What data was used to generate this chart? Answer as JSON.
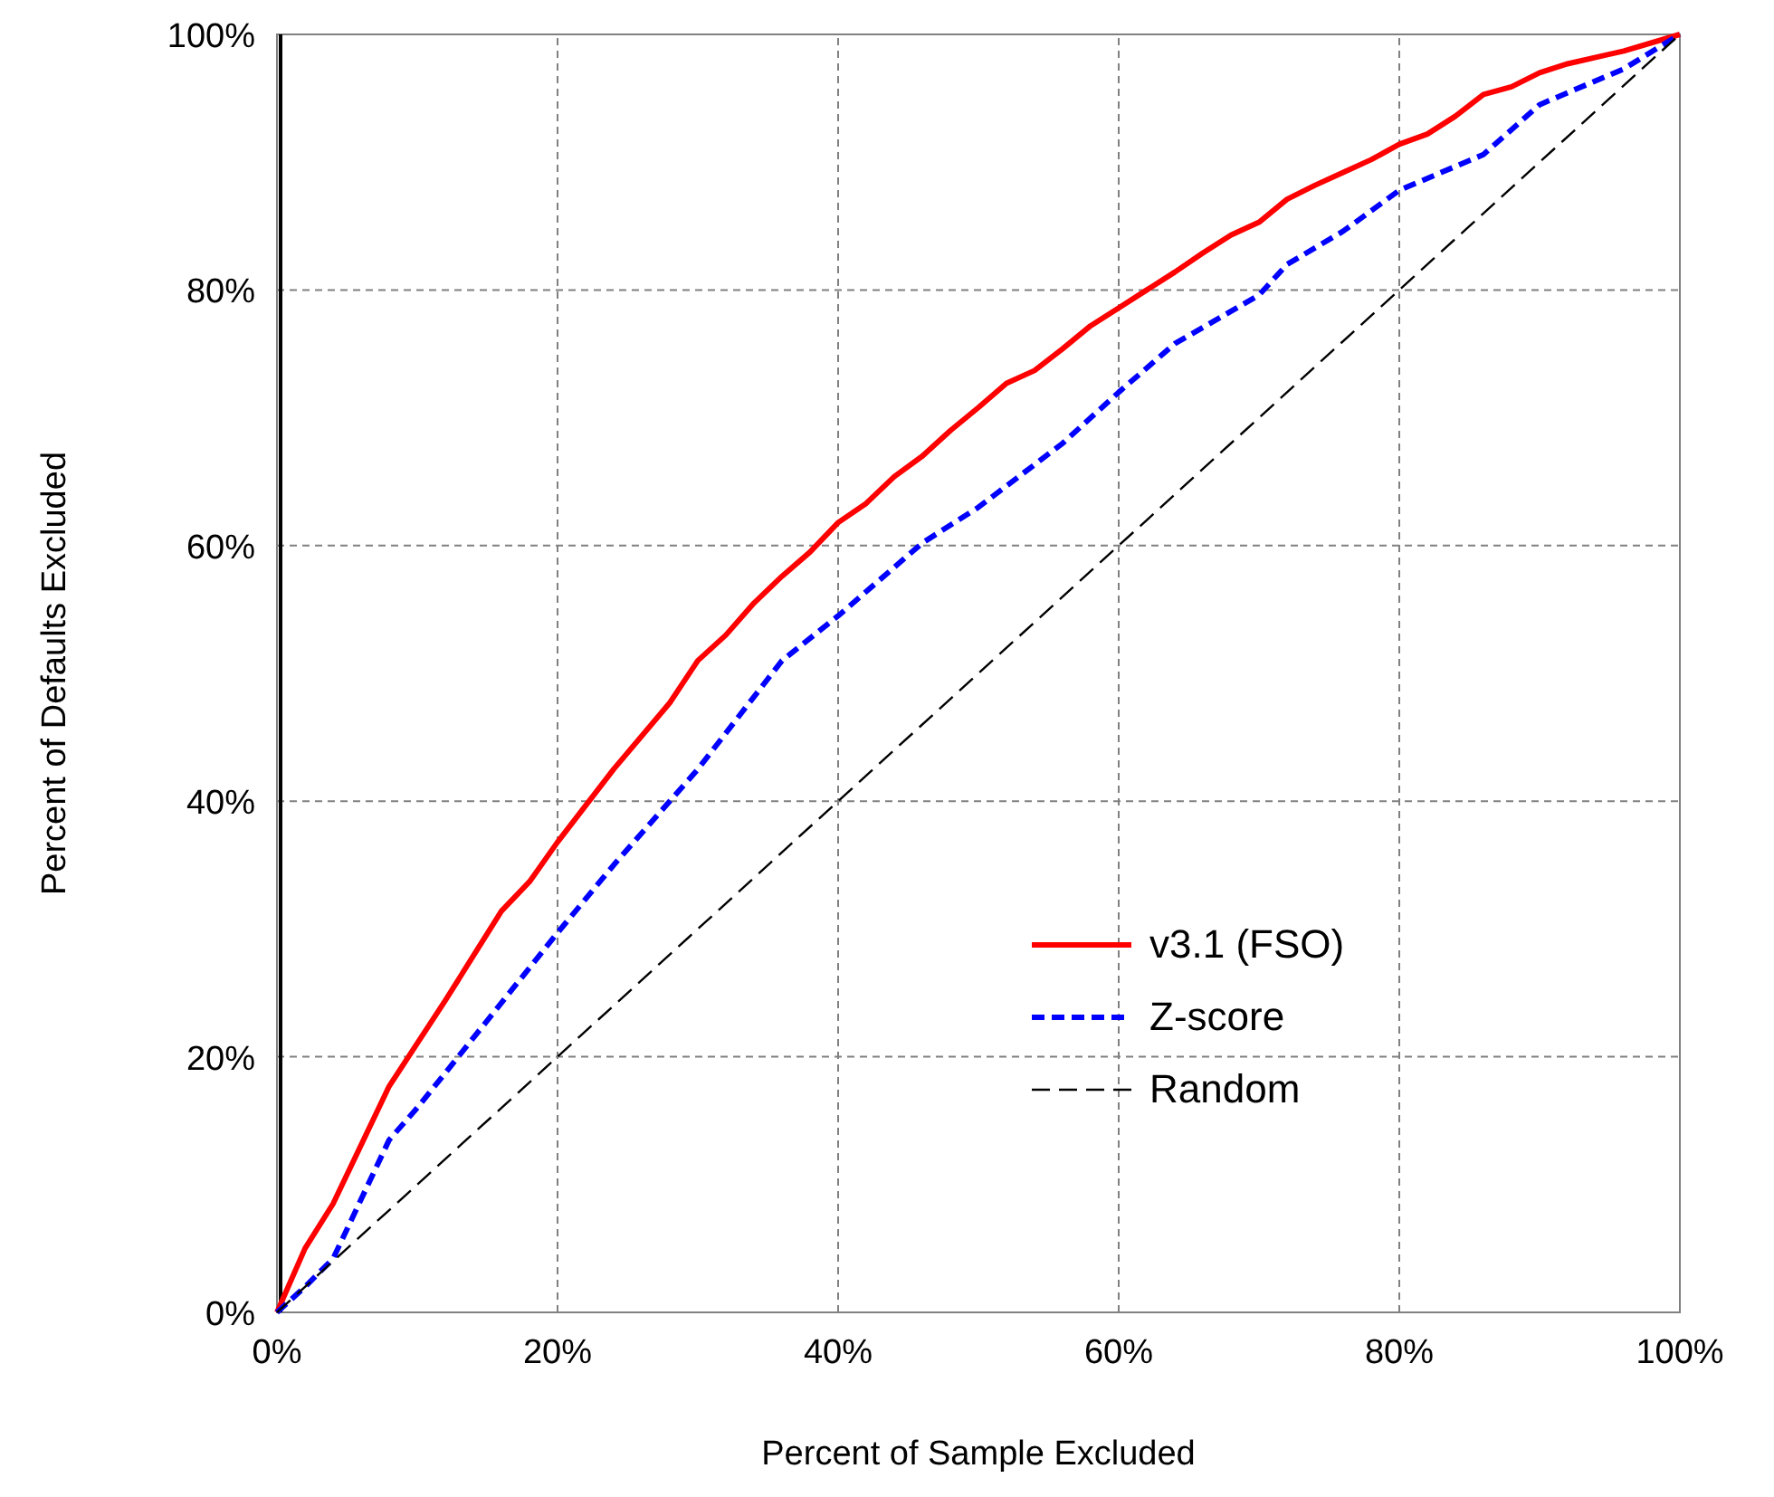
{
  "chart_data": {
    "type": "line",
    "xlabel": "Percent of Sample Excluded",
    "ylabel": "Percent of Defaults Excluded",
    "xlim": [
      0,
      100
    ],
    "ylim": [
      0,
      100
    ],
    "xticks": [
      {
        "value": 0,
        "label": "0%"
      },
      {
        "value": 20,
        "label": "20%"
      },
      {
        "value": 40,
        "label": "40%"
      },
      {
        "value": 60,
        "label": "60%"
      },
      {
        "value": 80,
        "label": "80%"
      },
      {
        "value": 100,
        "label": "100%"
      }
    ],
    "yticks": [
      {
        "value": 0,
        "label": "0%"
      },
      {
        "value": 20,
        "label": "20%"
      },
      {
        "value": 40,
        "label": "40%"
      },
      {
        "value": 60,
        "label": "60%"
      },
      {
        "value": 80,
        "label": "80%"
      },
      {
        "value": 100,
        "label": "100%"
      }
    ],
    "grid": true,
    "legend": "bottom right",
    "marker": "none",
    "series": [
      {
        "name": "v3.1 (FSO)",
        "color": "#ff0000",
        "line_style": "solid",
        "x": [
          0,
          2,
          4,
          8,
          12,
          16,
          18,
          20,
          24,
          28,
          30,
          32,
          34,
          36,
          38,
          40,
          42,
          44,
          46,
          48,
          50,
          52,
          54,
          56,
          58,
          60,
          62,
          64,
          66,
          68,
          70,
          72,
          74,
          76,
          78,
          80,
          82,
          84,
          86,
          88,
          90,
          92,
          96,
          100
        ],
        "values": [
          0,
          5,
          8.5,
          17.7,
          24.4,
          31.4,
          33.7,
          36.8,
          42.5,
          47.7,
          51,
          53,
          55.5,
          57.6,
          59.5,
          61.8,
          63.3,
          65.4,
          67,
          69,
          70.8,
          72.7,
          73.7,
          75.4,
          77.2,
          78.6,
          80,
          81.4,
          82.9,
          84.3,
          85.3,
          87.1,
          88.2,
          89.2,
          90.2,
          91.4,
          92.2,
          93.6,
          95.3,
          95.9,
          97,
          97.7,
          98.7,
          100
        ]
      },
      {
        "name": "Z-score",
        "color": "#0000ff",
        "line_style": "dashed",
        "x": [
          0,
          2,
          4,
          8,
          10,
          20,
          24,
          30,
          36,
          40,
          46,
          50,
          56,
          60,
          64,
          70,
          72,
          76,
          80,
          86,
          90,
          96,
          100
        ],
        "values": [
          0,
          2,
          4.2,
          13.5,
          16,
          29.7,
          35,
          42.5,
          51,
          54.5,
          60.2,
          63,
          68,
          72,
          75.8,
          79.6,
          82,
          84.6,
          87.8,
          90.6,
          94.5,
          97.3,
          100
        ]
      },
      {
        "name": "Random",
        "color": "#000000",
        "line_style": "longdash",
        "x": [
          0,
          100
        ],
        "values": [
          0,
          100
        ]
      }
    ]
  }
}
